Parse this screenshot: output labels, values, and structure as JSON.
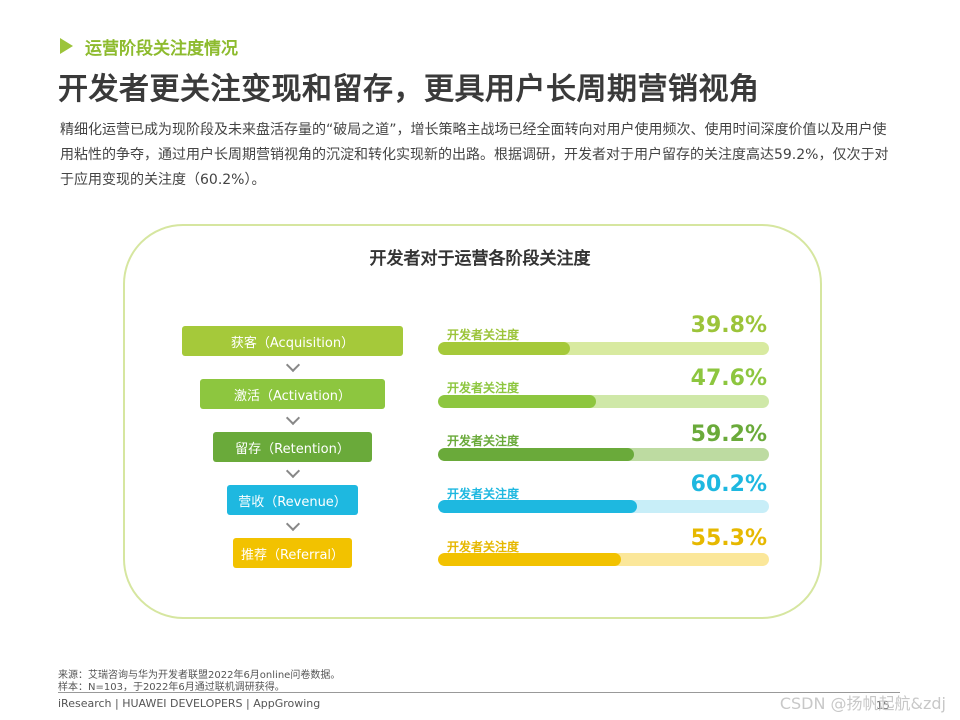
{
  "section_label": "运营阶段关注度情况",
  "title": "开发者更关注变现和留存，更具用户长周期营销视角",
  "intro_text": "精细化运营已成为现阶段及未来盘活存量的“破局之道”，增长策略主战场已经全面转向对用户使用频次、使用时间深度价值以及用户使用粘性的争夺，通过用户长周期营销视角的沉淀和转化实现新的出路。根据调研，开发者对于用户留存的关注度高达59.2%，仅次于对于应用变现的关注度（60.2%）。",
  "chart_data": {
    "type": "bar",
    "title": "开发者对于运营各阶段关注度",
    "series_label": "开发者关注度",
    "categories": [
      "获客（Acquisition）",
      "激活（Activation）",
      "留存（Retention）",
      "营收（Revenue）",
      "推荐（Referral）"
    ],
    "values": [
      39.8,
      47.6,
      59.2,
      60.2,
      55.3
    ],
    "value_labels": [
      "39.8%",
      "47.6%",
      "59.2%",
      "60.2%",
      "55.3%"
    ],
    "ylim": [
      0,
      100
    ],
    "colors": [
      "#a5c93a",
      "#8dc63f",
      "#6aaa3a",
      "#1eb8e0",
      "#f2c200"
    ],
    "track_colors": [
      "#d8eaa0",
      "#cfe8a8",
      "#bddba1",
      "#c8eef8",
      "#fbe79a"
    ],
    "label_colors": [
      "#9cc43a",
      "#8dc63f",
      "#6aaa3a",
      "#1eb8e0",
      "#e6b800"
    ]
  },
  "footnotes": {
    "source": "来源：艾瑞咨询与华为开发者联盟2022年6月online问卷数据。",
    "sample": "样本：N=103，于2022年6月通过联机调研获得。"
  },
  "footer": "iResearch | HUAWEI DEVELOPERS | AppGrowing",
  "watermark": "CSDN @扬帆起航&zdj",
  "page_number": "15"
}
